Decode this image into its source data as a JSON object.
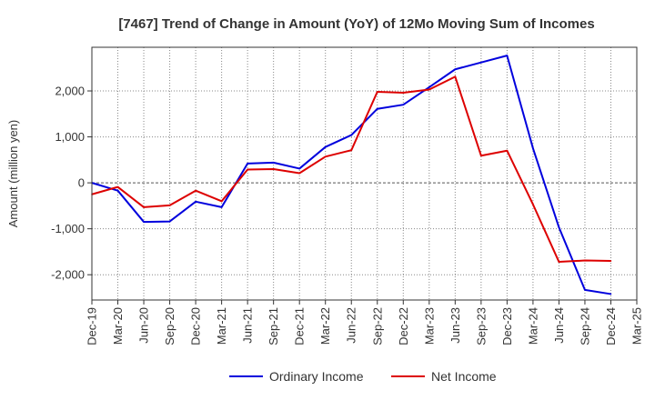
{
  "chart_data": {
    "type": "line",
    "title": "[7467]  Trend of Change in Amount (YoY) of 12Mo Moving Sum of Incomes",
    "ylabel": "Amount (million yen)",
    "xlabel": "",
    "ylim": [
      -2550,
      2950
    ],
    "yticks": [
      -2000,
      -1000,
      0,
      1000,
      2000
    ],
    "ytick_labels": [
      "-2,000",
      "-1,000",
      "0",
      "1,000",
      "2,000"
    ],
    "categories": [
      "Dec-19",
      "Mar-20",
      "Jun-20",
      "Sep-20",
      "Dec-20",
      "Mar-21",
      "Jun-21",
      "Sep-21",
      "Dec-21",
      "Mar-22",
      "Jun-22",
      "Sep-22",
      "Dec-22",
      "Mar-23",
      "Jun-23",
      "Sep-23",
      "Dec-23",
      "Mar-24",
      "Jun-24",
      "Sep-24",
      "Dec-24",
      "Mar-25"
    ],
    "grid": true,
    "legend_position": "bottom",
    "colors": {
      "ordinary": "#0000dd",
      "net": "#dd0000",
      "grid": "#888888",
      "axis": "#333333"
    },
    "series": [
      {
        "name": "Ordinary Income",
        "color": "#0000dd",
        "values": [
          0,
          -170,
          -850,
          -840,
          -410,
          -530,
          420,
          440,
          310,
          780,
          1040,
          1610,
          1700,
          2080,
          2470,
          2620,
          2770,
          750,
          -970,
          -2330,
          -2420,
          null
        ]
      },
      {
        "name": "Net Income",
        "color": "#dd0000",
        "values": [
          -250,
          -90,
          -530,
          -490,
          -170,
          -400,
          290,
          300,
          210,
          570,
          710,
          1980,
          1960,
          2030,
          2310,
          590,
          700,
          -470,
          -1720,
          -1690,
          -1700,
          null
        ]
      }
    ]
  }
}
